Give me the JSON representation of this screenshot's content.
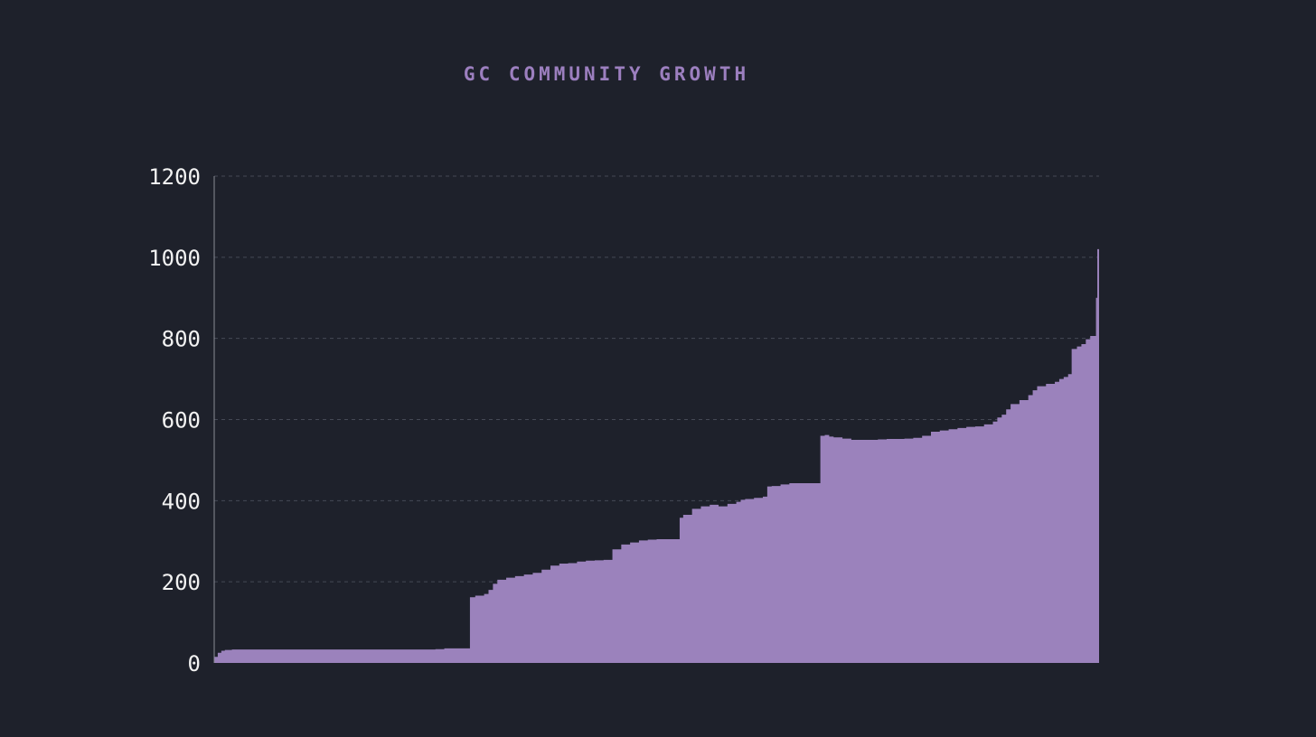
{
  "colors": {
    "background": "#1e212b",
    "title": "#9c7fbf",
    "area_fill": "#9b82bc",
    "axis": "#8a8d96",
    "grid": "#454955",
    "tick_label": "#f2f2f2"
  },
  "chart_data": {
    "type": "area",
    "title": "GC COMMUNITY GROWTH",
    "xlabel": "",
    "ylabel": "",
    "ylim": [
      0,
      1200
    ],
    "yticks": [
      "0",
      "200",
      "400",
      "600",
      "800",
      "1000",
      "1200"
    ],
    "grid": "horizontal dashed",
    "legend": "none",
    "series": [
      {
        "step": true,
        "points": [
          [
            0,
            15
          ],
          [
            0.4,
            25
          ],
          [
            0.8,
            30
          ],
          [
            1.2,
            32
          ],
          [
            2,
            33
          ],
          [
            10,
            33
          ],
          [
            20,
            33
          ],
          [
            25,
            34
          ],
          [
            26,
            36
          ],
          [
            28.8,
            36
          ],
          [
            28.9,
            162
          ],
          [
            29.5,
            166
          ],
          [
            30.5,
            170
          ],
          [
            31,
            180
          ],
          [
            31.5,
            195
          ],
          [
            32,
            205
          ],
          [
            33,
            210
          ],
          [
            34,
            214
          ],
          [
            35,
            218
          ],
          [
            36,
            222
          ],
          [
            37,
            230
          ],
          [
            38,
            240
          ],
          [
            39,
            245
          ],
          [
            40,
            246
          ],
          [
            41,
            250
          ],
          [
            42,
            252
          ],
          [
            43,
            253
          ],
          [
            44,
            254
          ],
          [
            44.8,
            254
          ],
          [
            45,
            280
          ],
          [
            46,
            292
          ],
          [
            47,
            297
          ],
          [
            48,
            302
          ],
          [
            49,
            304
          ],
          [
            50,
            305
          ],
          [
            52,
            305
          ],
          [
            52.5,
            305
          ],
          [
            52.6,
            358
          ],
          [
            53,
            365
          ],
          [
            54,
            380
          ],
          [
            55,
            386
          ],
          [
            56,
            390
          ],
          [
            57,
            386
          ],
          [
            58,
            392
          ],
          [
            59,
            397
          ],
          [
            59.5,
            402
          ],
          [
            60,
            404
          ],
          [
            61,
            407
          ],
          [
            62,
            410
          ],
          [
            62.5,
            435
          ],
          [
            63,
            436
          ],
          [
            64,
            440
          ],
          [
            65,
            443
          ],
          [
            67,
            443
          ],
          [
            68.4,
            443
          ],
          [
            68.5,
            560
          ],
          [
            69,
            562
          ],
          [
            69.5,
            558
          ],
          [
            70,
            556
          ],
          [
            71,
            553
          ],
          [
            72,
            550
          ],
          [
            73,
            550
          ],
          [
            74,
            550
          ],
          [
            75,
            551
          ],
          [
            76,
            552
          ],
          [
            77,
            552
          ],
          [
            78,
            553
          ],
          [
            79,
            555
          ],
          [
            80,
            560
          ],
          [
            81,
            570
          ],
          [
            82,
            573
          ],
          [
            83,
            576
          ],
          [
            84,
            579
          ],
          [
            85,
            582
          ],
          [
            86,
            583
          ],
          [
            87,
            588
          ],
          [
            88,
            595
          ],
          [
            88.5,
            605
          ],
          [
            89,
            612
          ],
          [
            89.5,
            625
          ],
          [
            90,
            638
          ],
          [
            91,
            648
          ],
          [
            92,
            660
          ],
          [
            92.5,
            672
          ],
          [
            93,
            682
          ],
          [
            94,
            688
          ],
          [
            95,
            693
          ],
          [
            95.5,
            700
          ],
          [
            96,
            705
          ],
          [
            96.5,
            712
          ],
          [
            96.9,
            774
          ],
          [
            97.5,
            780
          ],
          [
            98,
            786
          ],
          [
            98.5,
            798
          ],
          [
            99,
            806
          ],
          [
            99.6,
            806
          ],
          [
            99.65,
            900
          ],
          [
            99.8,
            1020
          ],
          [
            100,
            1020
          ]
        ]
      }
    ]
  }
}
